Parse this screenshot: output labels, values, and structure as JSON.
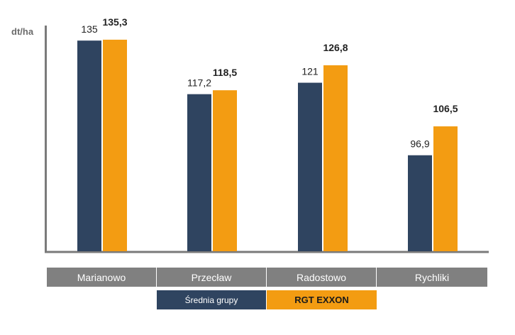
{
  "chart_data": {
    "type": "bar",
    "ylabel": "dt/ha",
    "categories": [
      "Marianowo",
      "Przecław",
      "Radostowo",
      "Rychliki"
    ],
    "series": [
      {
        "name": "Średnia grupy",
        "values": [
          135,
          117.2,
          121,
          96.9
        ],
        "labels": [
          "135",
          "117,2",
          "121",
          "96,9"
        ],
        "color": "#2f4460"
      },
      {
        "name": "RGT EXXON",
        "values": [
          135.3,
          118.5,
          126.8,
          106.5
        ],
        "labels": [
          "135,3",
          "118,5",
          "126,8",
          "106,5"
        ],
        "color": "#f39c12"
      }
    ],
    "ylim": [
      65,
      140
    ],
    "grid": false,
    "legend_position": "bottom",
    "category_box_color": "#808080"
  }
}
